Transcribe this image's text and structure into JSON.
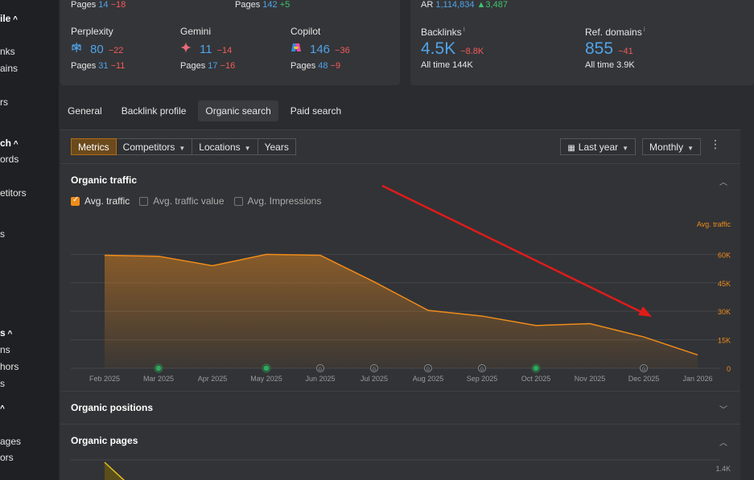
{
  "sidebar": {
    "items": [
      {
        "label": "ile",
        "head": true,
        "caret": true,
        "top": 16
      },
      {
        "label": "nks",
        "top": 57
      },
      {
        "label": "ains",
        "top": 78
      },
      {
        "label": "rs",
        "top": 120
      },
      {
        "label": "ch",
        "head": true,
        "caret": true,
        "top": 171
      },
      {
        "label": "ords",
        "top": 191
      },
      {
        "label": "etitors",
        "top": 233
      },
      {
        "label": "s",
        "top": 284
      },
      {
        "label": "s",
        "head": true,
        "caret": true,
        "top": 407
      },
      {
        "label": "ns",
        "top": 428
      },
      {
        "label": "hors",
        "top": 449
      },
      {
        "label": "s",
        "top": 470
      },
      {
        "label": "",
        "head": true,
        "caret": true,
        "top": 500
      },
      {
        "label": "ages",
        "top": 542
      },
      {
        "label": "ors",
        "top": 562
      }
    ]
  },
  "top_left_card": {
    "row_top": [
      {
        "prefix": "Pages",
        "value": "14",
        "delta": "−18"
      },
      {
        "prefix": "Pages",
        "value": "142",
        "delta": "+5"
      }
    ],
    "engines": [
      {
        "name": "Perplexity",
        "icon": "perplexity-icon",
        "value": "80",
        "delta": "−22",
        "pages_label": "Pages",
        "pages": "31",
        "pages_delta": "−11"
      },
      {
        "name": "Gemini",
        "icon": "gemini-sparkle-icon",
        "value": "11",
        "delta": "−14",
        "pages_label": "Pages",
        "pages": "17",
        "pages_delta": "−16"
      },
      {
        "name": "Copilot",
        "icon": "copilot-icon",
        "value": "146",
        "delta": "−36",
        "pages_label": "Pages",
        "pages": "48",
        "pages_delta": "−9"
      }
    ]
  },
  "top_right_card": {
    "ar_label": "AR",
    "ar_value": "1,114,834",
    "ar_delta": "3,487",
    "backlinks": {
      "label": "Backlinks",
      "value": "4.5K",
      "delta": "−8.8K",
      "sub_label": "All time",
      "sub_value": "144K"
    },
    "ref_domains": {
      "label": "Ref. domains",
      "value": "855",
      "delta": "−41",
      "sub_label": "All time",
      "sub_value": "3.9K"
    }
  },
  "tabs": [
    {
      "label": "General",
      "active": false
    },
    {
      "label": "Backlink profile",
      "active": false
    },
    {
      "label": "Organic search",
      "active": true
    },
    {
      "label": "Paid search",
      "active": false
    }
  ],
  "toolbar": {
    "metrics": "Metrics",
    "competitors": "Competitors",
    "locations": "Locations",
    "years": "Years",
    "date_range": "Last year",
    "interval": "Monthly"
  },
  "sections": {
    "organic_traffic": "Organic traffic",
    "organic_positions": "Organic positions",
    "organic_pages": "Organic pages"
  },
  "checks": [
    {
      "label": "Avg. traffic",
      "on": true
    },
    {
      "label": "Avg. traffic value",
      "on": false
    },
    {
      "label": "Avg. Impressions",
      "on": false
    }
  ],
  "chart_data": {
    "type": "area",
    "series": [
      {
        "name": "Avg. traffic",
        "values": [
          59500,
          59000,
          54000,
          60000,
          59500,
          45500,
          30500,
          27500,
          22500,
          23500,
          16500,
          7000
        ]
      }
    ],
    "x": [
      "Feb 2025",
      "Mar 2025",
      "Apr 2025",
      "May 2025",
      "Jun 2025",
      "Jul 2025",
      "Aug 2025",
      "Sep 2025",
      "Oct 2025",
      "Nov 2025",
      "Dec 2025",
      "Jan 2026"
    ],
    "ylabel": "Avg. traffic",
    "yticks": [
      "0",
      "15K",
      "30K",
      "45K",
      "60K"
    ],
    "ylim": [
      0,
      72000
    ],
    "color": "#f08c1a",
    "annotations": [
      {
        "month": "Mar 2025",
        "marker": "green-dot"
      },
      {
        "month": "May 2025",
        "marker": "green-dot"
      },
      {
        "month": "Jun 2025",
        "marker": "google-icon"
      },
      {
        "month": "Jul 2025",
        "marker": "google-icon"
      },
      {
        "month": "Aug 2025",
        "marker": "google-icon"
      },
      {
        "month": "Sep 2025",
        "marker": "google-icon"
      },
      {
        "month": "Oct 2025",
        "marker": "green-dot"
      },
      {
        "month": "Dec 2025",
        "marker": "google-icon"
      }
    ],
    "overlay": "red-downtrend-arrow"
  },
  "pages_chart": {
    "ytick": "1.4K",
    "color": "#e8c21a"
  }
}
